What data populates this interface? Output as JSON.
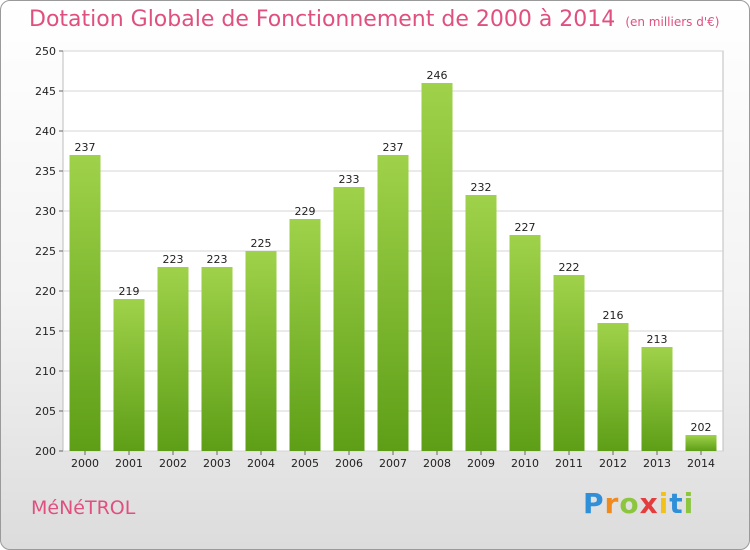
{
  "header": {
    "title": "Dotation Globale de Fonctionnement de 2000 à 2014",
    "unit": "(en milliers d'€)"
  },
  "footer": {
    "city": "MéNéTROL",
    "logo_letters": [
      "P",
      "r",
      "o",
      "x",
      "i",
      "t",
      "i"
    ],
    "logo_colors": [
      "#2f8fd8",
      "#f08a1c",
      "#8cc63f",
      "#e33d3d",
      "#f2c21a",
      "#2f8fd8",
      "#8cc63f"
    ]
  },
  "chart_data": {
    "type": "bar",
    "title": "Dotation Globale de Fonctionnement de 2000 à 2014",
    "xlabel": "",
    "ylabel": "",
    "categories": [
      "2000",
      "2001",
      "2002",
      "2003",
      "2004",
      "2005",
      "2006",
      "2007",
      "2008",
      "2009",
      "2010",
      "2011",
      "2012",
      "2013",
      "2014"
    ],
    "values": [
      237,
      219,
      223,
      223,
      225,
      229,
      233,
      237,
      246,
      232,
      227,
      222,
      216,
      213,
      202
    ],
    "ylim": [
      200,
      250
    ],
    "yticks": [
      200,
      205,
      210,
      215,
      220,
      225,
      230,
      235,
      240,
      245,
      250
    ],
    "grid": true,
    "colors": {
      "bar_top": "#9fd24a",
      "bar_bottom": "#5e9e17",
      "grid": "#d4d4d4"
    }
  }
}
